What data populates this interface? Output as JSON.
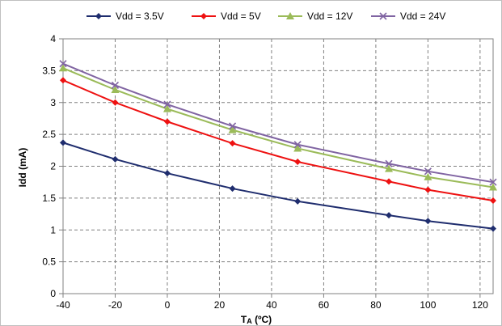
{
  "chart_data": {
    "type": "line",
    "xlabel_main": "T",
    "xlabel_sub": "A",
    "xlabel_unit": " (ºC)",
    "ylabel": "Idd (mA)",
    "xlim": [
      -40,
      125
    ],
    "ylim": [
      0,
      4
    ],
    "x_ticks": [
      -40,
      -20,
      0,
      20,
      40,
      60,
      80,
      100,
      120
    ],
    "y_ticks": [
      0,
      0.5,
      1,
      1.5,
      2,
      2.5,
      3,
      3.5,
      4
    ],
    "x_tick_labels": [
      "-40",
      "-20",
      "0",
      "20",
      "40",
      "60",
      "80",
      "100",
      "120"
    ],
    "y_tick_labels": [
      "0",
      "0.5",
      "1",
      "1.5",
      "2",
      "2.5",
      "3",
      "3.5",
      "4"
    ],
    "grid": true,
    "legend_position": "top",
    "x": [
      -40,
      -20,
      0,
      25,
      50,
      85,
      100,
      125
    ],
    "series": [
      {
        "name": "Vdd = 3.5V",
        "color": "#1f2d6e",
        "marker": "diamond",
        "values": [
          2.37,
          2.11,
          1.89,
          1.65,
          1.45,
          1.23,
          1.14,
          1.02
        ]
      },
      {
        "name": "Vdd = 5V",
        "color": "#ee1111",
        "marker": "diamond",
        "values": [
          3.35,
          3.0,
          2.7,
          2.36,
          2.07,
          1.76,
          1.63,
          1.46
        ]
      },
      {
        "name": "Vdd = 12V",
        "color": "#9bbb59",
        "marker": "triangle",
        "values": [
          3.54,
          3.2,
          2.9,
          2.57,
          2.28,
          1.96,
          1.83,
          1.67
        ]
      },
      {
        "name": "Vdd = 24V",
        "color": "#8064a2",
        "marker": "x",
        "values": [
          3.61,
          3.27,
          2.97,
          2.63,
          2.34,
          2.04,
          1.92,
          1.75
        ]
      }
    ]
  }
}
